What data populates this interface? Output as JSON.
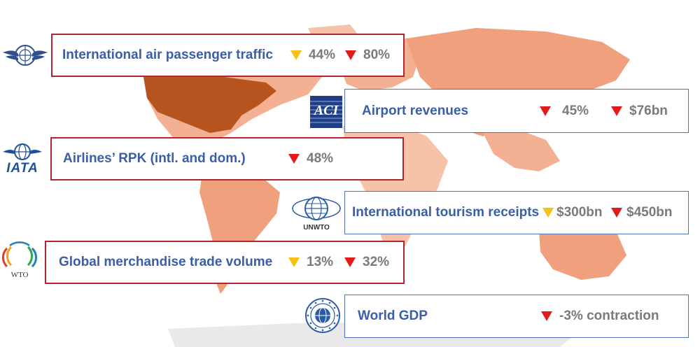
{
  "colors": {
    "red_border": "#b0262f",
    "blue_border": "#4f72b8",
    "label_blue": "#3a5ea8",
    "value_gray": "#7a7a7a",
    "triangle_yellow": "#f5c116",
    "triangle_red": "#e31b1b",
    "map_light": "#f3a98a",
    "map_dark": "#b6541f"
  },
  "logos": {
    "icao": {
      "icon": "icao-globe-wings-icon"
    },
    "aci": {
      "icon": "aci-logo-icon",
      "text": "ACI"
    },
    "iata": {
      "icon": "iata-globe-icon",
      "text": "IATA"
    },
    "unwto": {
      "icon": "unwto-globe-icon",
      "text": "UNWTO"
    },
    "wto": {
      "icon": "wto-rings-icon",
      "text": "WTO"
    },
    "imf": {
      "icon": "imf-seal-icon"
    }
  },
  "cards": {
    "air_passenger": {
      "label": "International air passenger traffic",
      "metrics": [
        {
          "trend": "down",
          "color": "yellow",
          "value": "44%"
        },
        {
          "trend": "down",
          "color": "red",
          "value": "80%"
        }
      ]
    },
    "airport_revenues": {
      "label": "Airport revenues",
      "metrics": [
        {
          "trend": "down",
          "color": "red",
          "value": "45%"
        },
        {
          "trend": "down",
          "color": "red",
          "value": "$76bn"
        }
      ]
    },
    "airlines_rpk": {
      "label": "Airlines’ RPK (intl. and dom.)",
      "metrics": [
        {
          "trend": "down",
          "color": "red",
          "value": "48%"
        }
      ]
    },
    "tourism_receipts": {
      "label": "International tourism receipts",
      "metrics": [
        {
          "trend": "down",
          "color": "yellow",
          "value": "$300bn"
        },
        {
          "trend": "down",
          "color": "red",
          "value": "$450bn"
        }
      ]
    },
    "merchandise_trade": {
      "label": "Global merchandise trade volume",
      "metrics": [
        {
          "trend": "down",
          "color": "yellow",
          "value": "13%"
        },
        {
          "trend": "down",
          "color": "red",
          "value": "32%"
        }
      ]
    },
    "world_gdp": {
      "label": "World GDP",
      "metrics": [
        {
          "trend": "down",
          "color": "red",
          "value": "-3% contraction"
        }
      ]
    }
  }
}
